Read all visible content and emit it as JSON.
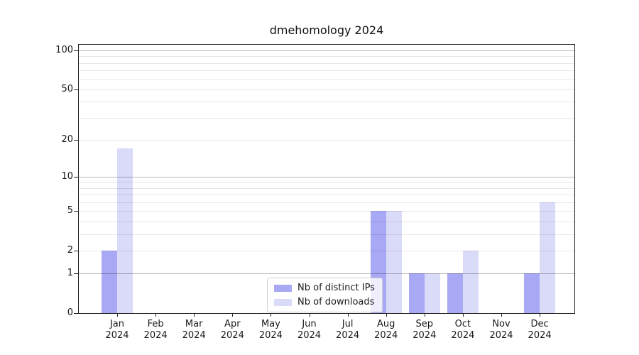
{
  "chart_data": {
    "type": "bar",
    "title": "dmehomology 2024",
    "categories": [
      "Jan",
      "Feb",
      "Mar",
      "Apr",
      "May",
      "Jun",
      "Jul",
      "Aug",
      "Sep",
      "Oct",
      "Nov",
      "Dec"
    ],
    "year_label": "2024",
    "series": [
      {
        "name": "Nb of distinct IPs",
        "color": "#a8a8f4",
        "values": [
          2,
          0,
          0,
          0,
          0,
          0,
          0,
          5,
          1,
          1,
          0,
          1
        ]
      },
      {
        "name": "Nb of downloads",
        "color": "#dadaf9",
        "values": [
          17,
          0,
          0,
          0,
          0,
          0,
          0,
          5,
          1,
          2,
          0,
          6
        ]
      }
    ],
    "yscale": "log1p",
    "ylim": [
      0,
      110.5
    ],
    "yticks": [
      0,
      1,
      2,
      5,
      10,
      20,
      50,
      100
    ],
    "ytick_labels": [
      "0",
      "1",
      "2",
      "5",
      "10",
      "20",
      "50",
      "100"
    ],
    "major_gridlines": [
      1,
      10,
      100
    ],
    "minor_gridlines": [
      2,
      3,
      4,
      5,
      6,
      7,
      8,
      9,
      20,
      30,
      40,
      50,
      60,
      70,
      80,
      90
    ],
    "grid_on": true,
    "legend_position": "lower center",
    "colors": {
      "axis": "#222222",
      "text": "#1a1a1a",
      "major_grid": "rgba(0,0,0,0.28)",
      "minor_grid": "rgba(0,0,0,0.09)",
      "background": "#ffffff"
    }
  }
}
